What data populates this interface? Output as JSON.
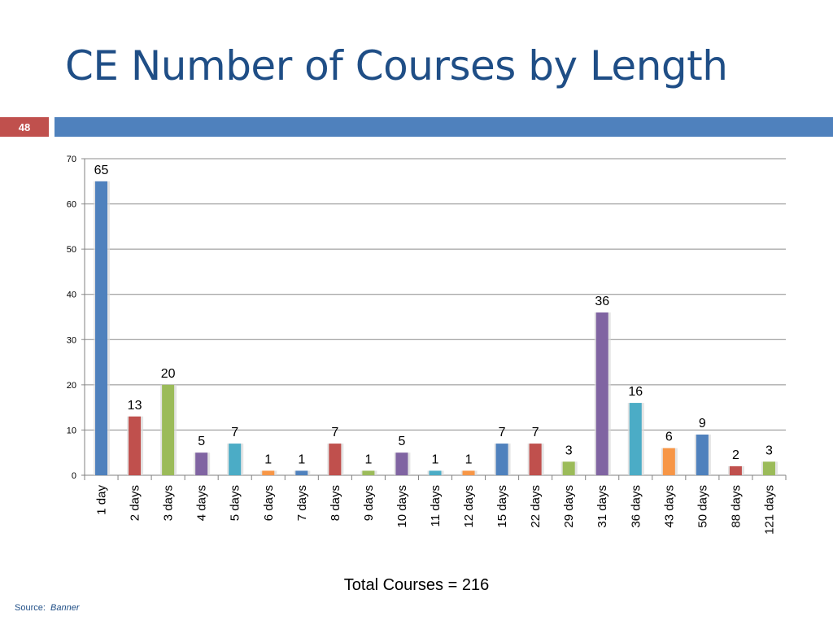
{
  "slide": {
    "title": "CE Number of Courses by Length",
    "number": "48",
    "total_text": "Total Courses = 216",
    "source_label": "Source:",
    "source_value": "Banner"
  },
  "colors": {
    "title": "#1f4e86",
    "slide_number_bg": "#c0504d",
    "title_rule": "#4f81bd"
  },
  "chart_data": {
    "type": "bar",
    "categories": [
      "1 day",
      "2 days",
      "3 days",
      "4 days",
      "5 days",
      "6 days",
      "7 days",
      "8 days",
      "9 days",
      "10 days",
      "11 days",
      "12 days",
      "15 days",
      "22 days",
      "29 days",
      "31 days",
      "36 days",
      "43 days",
      "50 days",
      "88 days",
      "121 days"
    ],
    "values": [
      65,
      13,
      20,
      5,
      7,
      1,
      1,
      7,
      1,
      5,
      1,
      1,
      7,
      7,
      3,
      36,
      16,
      6,
      9,
      2,
      3
    ],
    "bar_colors": [
      "#4f81bd",
      "#c0504d",
      "#9bbb59",
      "#8064a2",
      "#4bacc6",
      "#f79646",
      "#4f81bd",
      "#c0504d",
      "#9bbb59",
      "#8064a2",
      "#4bacc6",
      "#f79646",
      "#4f81bd",
      "#c0504d",
      "#9bbb59",
      "#8064a2",
      "#4bacc6",
      "#f79646",
      "#4f81bd",
      "#c0504d",
      "#9bbb59"
    ],
    "yticks": [
      0,
      10,
      20,
      30,
      40,
      50,
      60,
      70
    ],
    "ylim": [
      0,
      70
    ],
    "grid": true,
    "legend": "none",
    "title": "",
    "xlabel": "",
    "ylabel": ""
  }
}
